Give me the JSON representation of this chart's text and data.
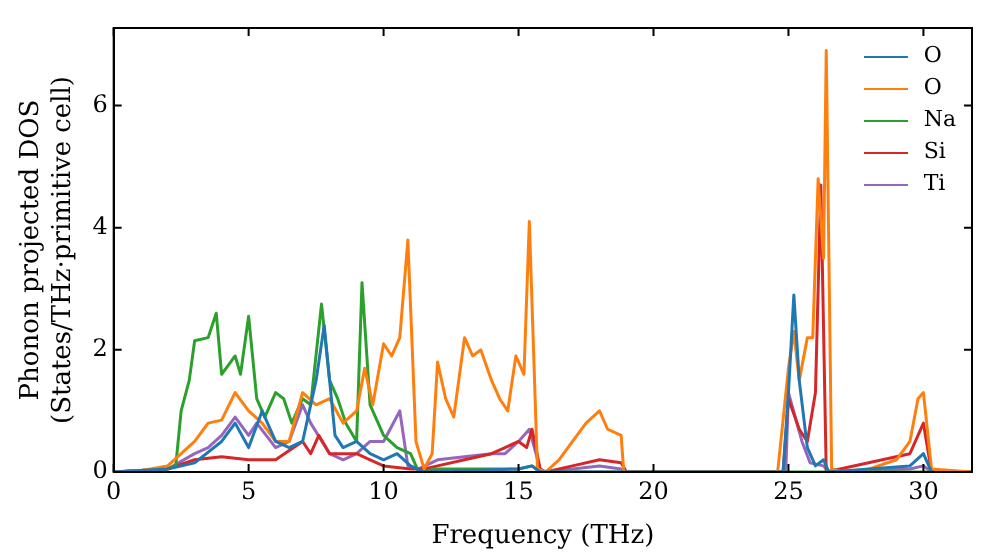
{
  "chart_data": {
    "type": "line",
    "xlabel": "Frequency (THz)",
    "ylabel": "Phonon projected DOS\n(States/THz·primitive cell)",
    "xlim": [
      0,
      31.8
    ],
    "ylim": [
      0,
      7.27
    ],
    "xticks": [
      0,
      5,
      10,
      15,
      20,
      25,
      30
    ],
    "yticks": [
      0,
      2,
      4,
      6
    ],
    "grid": false,
    "legend": "top right",
    "marker": "none",
    "line_style": "solid",
    "series": [
      {
        "name": "O",
        "color": "#1f77b4",
        "x": [
          0,
          2,
          3,
          4,
          4.5,
          5,
          5.5,
          6,
          6.5,
          7,
          7.5,
          7.8,
          8.2,
          8.5,
          9,
          9.5,
          10,
          10.5,
          11,
          11.5,
          15,
          15.5,
          15.8,
          24.8,
          25,
          25.2,
          25.4,
          25.7,
          26,
          26.3,
          26.5,
          29.5,
          30,
          30.3
        ],
        "values": [
          0,
          0.05,
          0.15,
          0.5,
          0.8,
          0.4,
          1.0,
          0.5,
          0.4,
          0.5,
          1.5,
          2.4,
          0.6,
          0.4,
          0.5,
          0.3,
          0.2,
          0.3,
          0.1,
          0,
          0.05,
          0.1,
          0,
          0,
          1.3,
          2.9,
          1.5,
          0.4,
          0.1,
          0.2,
          0,
          0.1,
          0.3,
          0
        ]
      },
      {
        "name": "O",
        "color": "#ff7f0e",
        "x": [
          0,
          1,
          2,
          2.5,
          3,
          3.5,
          4,
          4.5,
          5,
          5.5,
          6,
          6.5,
          7,
          7.5,
          8,
          8.5,
          9,
          9.3,
          9.6,
          10,
          10.3,
          10.6,
          10.9,
          11.2,
          11.5,
          11.8,
          12,
          12.3,
          12.6,
          13,
          13.3,
          13.6,
          14,
          14.3,
          14.6,
          14.9,
          15.2,
          15.4,
          15.7,
          16,
          16.5,
          17,
          17.5,
          18,
          18.3,
          18.8,
          18.9,
          24.6,
          25,
          25.2,
          25.4,
          25.7,
          25.9,
          26.1,
          26.3,
          26.4,
          26.6,
          27,
          28,
          29,
          29.5,
          29.8,
          30,
          30.3,
          31.8
        ],
        "values": [
          0,
          0.02,
          0.1,
          0.3,
          0.5,
          0.8,
          0.85,
          1.3,
          1.0,
          0.8,
          0.5,
          0.5,
          1.3,
          1.1,
          1.2,
          0.8,
          1.0,
          1.7,
          1.1,
          2.1,
          1.9,
          2.2,
          3.8,
          0.5,
          0.05,
          0.3,
          1.8,
          1.2,
          0.9,
          2.2,
          1.9,
          2.0,
          1.5,
          1.2,
          1.0,
          1.9,
          1.6,
          4.1,
          0.05,
          0,
          0.2,
          0.5,
          0.8,
          1.0,
          0.7,
          0.6,
          0,
          0,
          1.7,
          2.3,
          1.5,
          2.2,
          2.2,
          4.8,
          3.5,
          6.9,
          0.05,
          0,
          0.05,
          0.2,
          0.5,
          1.2,
          1.3,
          0.05,
          0
        ]
      },
      {
        "name": "Na",
        "color": "#2ca02c",
        "x": [
          0,
          2,
          2.3,
          2.5,
          2.8,
          3,
          3.5,
          3.8,
          4,
          4.5,
          4.7,
          5,
          5.3,
          5.6,
          6,
          6.3,
          6.6,
          7,
          7.3,
          7.7,
          8,
          8.3,
          8.6,
          9,
          9.2,
          9.5,
          10,
          10.5,
          11,
          11.3,
          12,
          15,
          15.5,
          15.8,
          31.8
        ],
        "values": [
          0,
          0.05,
          0.1,
          1.0,
          1.5,
          2.15,
          2.2,
          2.6,
          1.6,
          1.9,
          1.6,
          2.55,
          1.2,
          0.9,
          1.3,
          1.2,
          0.8,
          1.2,
          1.1,
          2.75,
          1.5,
          1.2,
          0.8,
          0.5,
          3.1,
          1.1,
          0.6,
          0.4,
          0.3,
          0,
          0.05,
          0.05,
          0.1,
          0,
          0
        ]
      },
      {
        "name": "Si",
        "color": "#d62728",
        "x": [
          0,
          2,
          3,
          4,
          5,
          6,
          7,
          7.3,
          7.6,
          8,
          9,
          9.5,
          10,
          11,
          11.5,
          12,
          13,
          14,
          14.5,
          15,
          15.3,
          15.5,
          15.8,
          16,
          17,
          18,
          18.8,
          19,
          24.8,
          25,
          25.4,
          25.7,
          26,
          26.2,
          26.4,
          29.5,
          30,
          30.3,
          31.8
        ],
        "values": [
          0,
          0.05,
          0.2,
          0.25,
          0.2,
          0.2,
          0.5,
          0.3,
          0.6,
          0.3,
          0.3,
          0.2,
          0.1,
          0.05,
          0.05,
          0.1,
          0.2,
          0.3,
          0.4,
          0.5,
          0.4,
          0.7,
          0.05,
          0,
          0.1,
          0.2,
          0.15,
          0,
          0,
          1.2,
          0.7,
          0.5,
          1.3,
          4.7,
          0,
          0.3,
          0.8,
          0,
          0
        ]
      },
      {
        "name": "Ti",
        "color": "#9467bd",
        "x": [
          0,
          2,
          3,
          3.5,
          4,
          4.5,
          5,
          5.3,
          6,
          6.5,
          7,
          7.3,
          8,
          8.5,
          9,
          9.5,
          10,
          10.6,
          10.9,
          11.3,
          12,
          13,
          14,
          14.5,
          15,
          15.4,
          15.8,
          16,
          17,
          18,
          18.8,
          19,
          24.9,
          25,
          25.5,
          25.8,
          26.3,
          26.5,
          29.5,
          30,
          30.3,
          31.8
        ],
        "values": [
          0,
          0.05,
          0.3,
          0.4,
          0.6,
          0.9,
          0.6,
          0.8,
          0.4,
          0.5,
          1.1,
          0.8,
          0.3,
          0.2,
          0.3,
          0.5,
          0.5,
          1.0,
          0.1,
          0.05,
          0.2,
          0.25,
          0.3,
          0.3,
          0.5,
          0.7,
          0.05,
          0,
          0.05,
          0.1,
          0.05,
          0,
          0,
          1.3,
          0.5,
          0.15,
          0.1,
          0,
          0.05,
          0.1,
          0,
          0
        ]
      }
    ]
  }
}
